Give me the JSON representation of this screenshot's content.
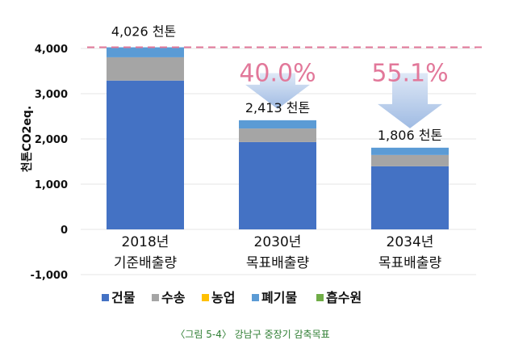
{
  "chart_data": {
    "type": "bar",
    "stacked": true,
    "title": "",
    "ylabel": "천톤CO2eq.",
    "xlabel": "",
    "ylim": [
      -1000,
      4000
    ],
    "yticks": [
      -1000,
      0,
      1000,
      2000,
      3000,
      4000
    ],
    "ytick_labels": [
      "-1,000",
      "0",
      "1,000",
      "2,000",
      "3,000",
      "4,000"
    ],
    "grid": true,
    "legend_placement": "bottom",
    "categories": [
      [
        "2018년",
        "기준배출량"
      ],
      [
        "2030년",
        "목표배출량"
      ],
      [
        "2034년",
        "목표배출량"
      ]
    ],
    "series": [
      {
        "name": "건물",
        "color": "#4472c4",
        "values": [
          3290,
          1930,
          1395
        ]
      },
      {
        "name": "수송",
        "color": "#a5a5a5",
        "values": [
          515,
          300,
          250
        ]
      },
      {
        "name": "농업",
        "color": "#ffc000",
        "values": [
          0,
          0,
          0
        ]
      },
      {
        "name": "폐기물",
        "color": "#5b9bd5",
        "values": [
          221,
          183,
          161
        ]
      },
      {
        "name": "흡수원",
        "color": "#70ad47",
        "values": [
          0,
          0,
          0
        ]
      }
    ],
    "total_labels": [
      "4,026 천톤",
      "2,413 천톤",
      "1,806 천톤"
    ],
    "totals": [
      4026,
      2413,
      1806
    ],
    "reference_line": {
      "value": 4026,
      "color": "#e2789a",
      "style": "dashed"
    },
    "reduction_labels": [
      "",
      "40.0%",
      "55.1%"
    ],
    "caption": "〈그림 5-4〉 강남구 중장기 감축목표"
  }
}
